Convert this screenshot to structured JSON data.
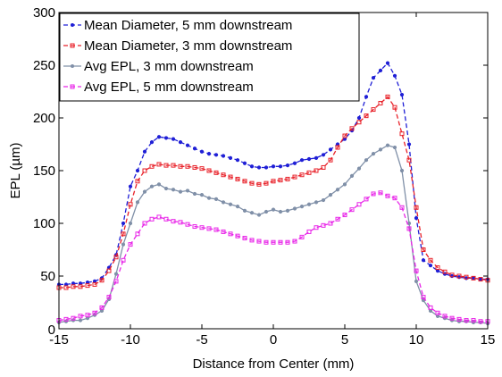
{
  "chart_data": {
    "type": "line",
    "xlabel": "Distance from Center (mm)",
    "ylabel": "EPL (µm)",
    "xlim": [
      -15,
      15
    ],
    "ylim": [
      0,
      300
    ],
    "xticks": [
      -15,
      -10,
      -5,
      0,
      5,
      10,
      15
    ],
    "yticks": [
      50,
      100,
      150,
      200,
      250,
      300
    ],
    "xtick_labels": [
      "-15",
      "-10",
      "-5",
      "0",
      "5",
      "10",
      "15"
    ],
    "ytick_labels": [
      "50",
      "100",
      "150",
      "200",
      "250",
      "300"
    ],
    "y_zero_label": "0",
    "grid": false,
    "legend_position": "top-left",
    "x": [
      -15,
      -14.5,
      -14,
      -13.5,
      -13,
      -12.5,
      -12,
      -11.5,
      -11,
      -10.5,
      -10,
      -9.5,
      -9,
      -8.5,
      -8,
      -7.5,
      -7,
      -6.5,
      -6,
      -5.5,
      -5,
      -4.5,
      -4,
      -3.5,
      -3,
      -2.5,
      -2,
      -1.5,
      -1,
      -0.5,
      0,
      0.5,
      1,
      1.5,
      2,
      2.5,
      3,
      3.5,
      4,
      4.5,
      5,
      5.5,
      6,
      6.5,
      7,
      7.5,
      8,
      8.5,
      9,
      9.5,
      10,
      10.5,
      11,
      11.5,
      12,
      12.5,
      13,
      13.5,
      14,
      14.5,
      15
    ],
    "series": [
      {
        "name": "Mean Diameter, 5 mm downstream",
        "color": "#1f1fd6",
        "dash": "5,3",
        "marker": "dot",
        "values": [
          42,
          42,
          43,
          43,
          44,
          45,
          48,
          58,
          70,
          100,
          135,
          150,
          168,
          177,
          182,
          181,
          180,
          177,
          174,
          171,
          168,
          166,
          165,
          164,
          162,
          160,
          157,
          154,
          153,
          153,
          154,
          154,
          155,
          157,
          160,
          161,
          162,
          165,
          170,
          175,
          180,
          188,
          200,
          220,
          238,
          245,
          252,
          240,
          222,
          175,
          105,
          65,
          60,
          55,
          52,
          50,
          49,
          48,
          48,
          47,
          47
        ]
      },
      {
        "name": "Mean Diameter, 3 mm downstream",
        "color": "#e8222a",
        "dash": "5,3",
        "marker": "square",
        "values": [
          39,
          39,
          40,
          40,
          41,
          42,
          46,
          55,
          68,
          90,
          118,
          140,
          150,
          154,
          156,
          155,
          155,
          154,
          154,
          153,
          152,
          150,
          148,
          146,
          144,
          142,
          140,
          138,
          137,
          138,
          140,
          141,
          142,
          144,
          146,
          148,
          150,
          153,
          160,
          172,
          183,
          190,
          196,
          202,
          208,
          214,
          220,
          210,
          185,
          160,
          115,
          75,
          65,
          58,
          54,
          51,
          50,
          49,
          48,
          47,
          46
        ]
      },
      {
        "name": "Avg EPL, 3 mm downstream",
        "color": "#8090a8",
        "dash": "",
        "marker": "dot",
        "values": [
          6,
          7,
          8,
          8,
          10,
          13,
          17,
          28,
          52,
          80,
          100,
          120,
          130,
          135,
          137,
          133,
          132,
          130,
          131,
          128,
          127,
          124,
          123,
          120,
          118,
          116,
          112,
          110,
          108,
          111,
          113,
          111,
          112,
          114,
          116,
          118,
          120,
          122,
          127,
          132,
          137,
          145,
          152,
          160,
          166,
          170,
          174,
          172,
          150,
          100,
          45,
          27,
          17,
          12,
          10,
          8,
          7,
          7,
          6,
          6,
          5
        ]
      },
      {
        "name": "Avg EPL, 5 mm downstream",
        "color": "#e826e8",
        "dash": "5,3",
        "marker": "square",
        "values": [
          8,
          9,
          10,
          12,
          13,
          15,
          20,
          30,
          45,
          65,
          80,
          90,
          100,
          104,
          106,
          104,
          102,
          101,
          99,
          97,
          96,
          95,
          94,
          92,
          90,
          88,
          86,
          84,
          83,
          82,
          82,
          82,
          82,
          83,
          87,
          92,
          96,
          98,
          100,
          104,
          108,
          113,
          118,
          123,
          128,
          129,
          126,
          124,
          115,
          95,
          55,
          30,
          20,
          15,
          12,
          10,
          9,
          8,
          8,
          7,
          7
        ]
      }
    ]
  }
}
